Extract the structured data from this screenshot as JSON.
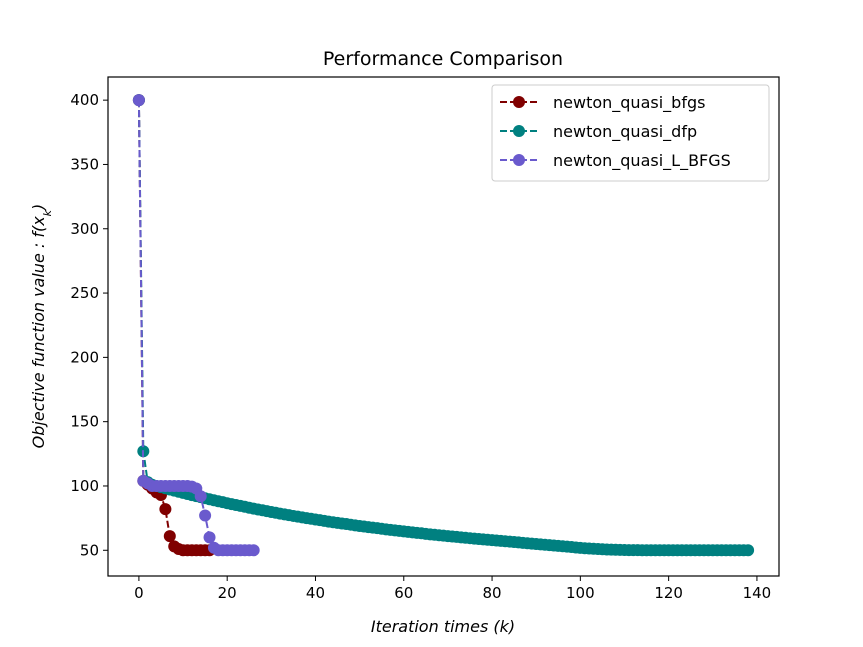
{
  "chart_data": {
    "type": "line",
    "title": "Performance Comparison",
    "xlabel": "Iteration times (k)",
    "ylabel": "Objective function value : f(x_k)",
    "xlim": [
      -7,
      145
    ],
    "ylim": [
      30,
      418
    ],
    "xticks": [
      0,
      20,
      40,
      60,
      80,
      100,
      120,
      140
    ],
    "yticks": [
      50,
      100,
      150,
      200,
      250,
      300,
      350,
      400
    ],
    "legend_position": "top-right",
    "grid": false,
    "series": [
      {
        "name": "newton_quasi_bfgs",
        "color": "#800000",
        "x": [
          0,
          1,
          2,
          3,
          4,
          5,
          6,
          7,
          8,
          9,
          10,
          11,
          12,
          13,
          14,
          15,
          16
        ],
        "y": [
          400,
          104,
          101,
          98,
          95,
          93,
          82,
          61,
          53,
          51,
          50,
          50,
          50,
          50,
          50,
          50,
          50
        ]
      },
      {
        "name": "newton_quasi_dfp",
        "color": "#008080",
        "x": [
          0,
          1,
          2,
          3,
          4,
          5,
          6,
          7,
          8,
          9,
          10,
          11,
          12,
          13,
          14,
          15,
          16,
          17,
          18,
          19,
          20,
          21,
          22,
          23,
          24,
          25,
          26,
          27,
          28,
          29,
          30,
          31,
          32,
          33,
          34,
          35,
          36,
          37,
          38,
          39,
          40,
          41,
          42,
          43,
          44,
          45,
          46,
          47,
          48,
          49,
          50,
          51,
          52,
          53,
          54,
          55,
          56,
          57,
          58,
          59,
          60,
          61,
          62,
          63,
          64,
          65,
          66,
          67,
          68,
          69,
          70,
          71,
          72,
          73,
          74,
          75,
          76,
          77,
          78,
          79,
          80,
          81,
          82,
          83,
          84,
          85,
          86,
          87,
          88,
          89,
          90,
          91,
          92,
          93,
          94,
          95,
          96,
          97,
          98,
          99,
          100,
          101,
          102,
          103,
          104,
          105,
          106,
          107,
          108,
          109,
          110,
          111,
          112,
          113,
          114,
          115,
          116,
          117,
          118,
          119,
          120,
          121,
          122,
          123,
          124,
          125,
          126,
          127,
          128,
          129,
          130,
          131,
          132,
          133,
          134,
          135,
          136,
          137,
          138
        ],
        "y": [
          400,
          127,
          103,
          101,
          100,
          99.1,
          98.2,
          97.3,
          96.4,
          95.5,
          94.6,
          93.8,
          92.9,
          92.1,
          91.3,
          90.5,
          89.7,
          88.9,
          88.1,
          87.4,
          86.6,
          85.9,
          85.2,
          84.5,
          83.8,
          83.1,
          82.4,
          81.7,
          81.1,
          80.4,
          79.8,
          79.2,
          78.5,
          77.9,
          77.3,
          76.7,
          76.2,
          75.6,
          75.0,
          74.5,
          73.9,
          73.4,
          72.9,
          72.3,
          71.8,
          71.3,
          70.8,
          70.4,
          69.9,
          69.4,
          68.9,
          68.5,
          68.0,
          67.6,
          67.2,
          66.7,
          66.3,
          65.9,
          65.5,
          65.1,
          64.7,
          64.3,
          63.9,
          63.5,
          63.2,
          62.8,
          62.4,
          62.1,
          61.7,
          61.4,
          61.0,
          60.7,
          60.4,
          60.0,
          59.7,
          59.4,
          59.1,
          58.8,
          58.5,
          58.2,
          57.9,
          57.6,
          57.3,
          57.0,
          56.7,
          56.4,
          56.1,
          55.8,
          55.5,
          55.2,
          54.9,
          54.6,
          54.3,
          54.0,
          53.7,
          53.4,
          53.1,
          52.8,
          52.5,
          52.2,
          51.9,
          51.6,
          51.4,
          51.2,
          51.0,
          50.8,
          50.6,
          50.5,
          50.4,
          50.3,
          50.2,
          50.15,
          50.1,
          50.08,
          50.06,
          50.05,
          50.04,
          50.03,
          50.02,
          50.02,
          50.01,
          50.01,
          50,
          50,
          50,
          50,
          50,
          50,
          50,
          50,
          50,
          50,
          50,
          50,
          50,
          50,
          50,
          50,
          50
        ]
      },
      {
        "name": "newton_quasi_L_BFGS",
        "color": "#6a5acd",
        "x": [
          0,
          1,
          2,
          3,
          4,
          5,
          6,
          7,
          8,
          9,
          10,
          11,
          12,
          13,
          14,
          15,
          16,
          17,
          18,
          19,
          20,
          21,
          22,
          23,
          24,
          25,
          26
        ],
        "y": [
          400,
          104,
          102,
          100,
          100,
          100,
          100,
          100,
          100,
          100,
          100,
          100,
          99.5,
          98,
          92,
          77,
          60,
          52,
          50,
          50,
          50,
          50,
          50,
          50,
          50,
          50,
          50
        ]
      }
    ]
  }
}
